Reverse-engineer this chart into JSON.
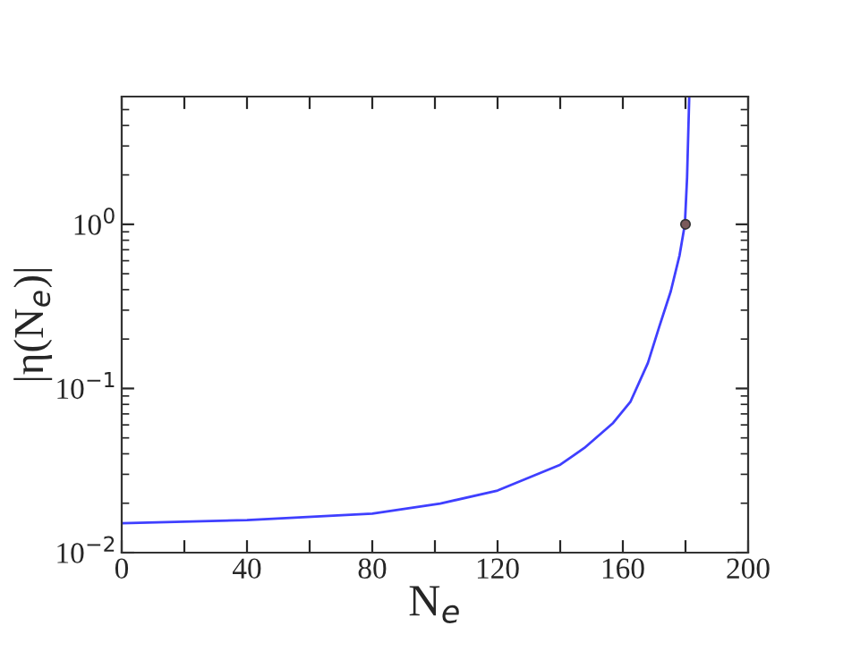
{
  "chart_data": {
    "type": "line",
    "xlabel": "N$_{e}$",
    "ylabel": "|η(N$_{e}$)|",
    "log": "y",
    "grid": false,
    "xlim": [
      0,
      200
    ],
    "ylim": [
      0.01,
      6
    ],
    "xticks": [
      0,
      {
        "value": 20,
        "label": null
      },
      40,
      {
        "value": 60,
        "label": null
      },
      80,
      {
        "value": 100,
        "label": null
      },
      120,
      {
        "value": 140,
        "label": null
      },
      160,
      {
        "value": 180,
        "label": null
      },
      200
    ],
    "yticks": [
      {
        "value": 0.01,
        "label": "10$^{−2}$"
      },
      {
        "value": 0.1,
        "label": "10$^{−1}$"
      },
      {
        "value": 1,
        "label": "10$^{0}$"
      }
    ],
    "series": [
      {
        "color": "#3f3fff",
        "x": [
          0,
          40,
          80,
          101.7,
          120,
          140,
          147.7,
          156.9,
          162.4,
          168,
          171.6,
          175.3,
          178.1,
          179.8,
          180.5,
          181.2
        ],
        "values": [
          0.0151,
          0.0158,
          0.0173,
          0.0199,
          0.0239,
          0.0343,
          0.0434,
          0.0617,
          0.0828,
          0.143,
          0.237,
          0.391,
          0.647,
          1.0,
          1.92,
          6
        ]
      },
      {
        "type": "scatter",
        "color": "#7a5a5a",
        "marker": "circle",
        "x": [
          180
        ],
        "values": [
          1
        ]
      }
    ]
  }
}
